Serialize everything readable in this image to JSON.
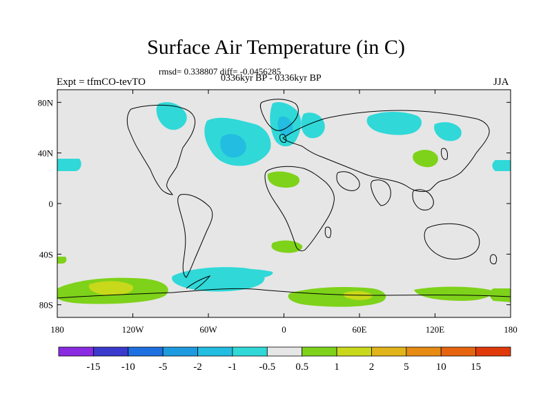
{
  "title": "Surface Air Temperature (in C)",
  "stats": "rmsd= 0.338807 diff= -0.0456285",
  "experiment": "Expt = tfmCO-tevTO",
  "period": "0336kyr BP - 0336kyr BP",
  "season": "JJA",
  "map": {
    "lon_range": [
      -180,
      180
    ],
    "lat_range": [
      -90,
      90
    ],
    "background_color": "#e6e6e6",
    "lat_ticks": [
      {
        "value": 80,
        "label": "80N"
      },
      {
        "value": 40,
        "label": "40N"
      },
      {
        "value": 0,
        "label": "0"
      },
      {
        "value": -40,
        "label": "40S"
      },
      {
        "value": -80,
        "label": "80S"
      }
    ],
    "lon_ticks": [
      {
        "value": -180,
        "label": "180"
      },
      {
        "value": -120,
        "label": "120W"
      },
      {
        "value": -60,
        "label": "60W"
      },
      {
        "value": 0,
        "label": "0"
      },
      {
        "value": 60,
        "label": "60E"
      },
      {
        "value": 120,
        "label": "120E"
      },
      {
        "value": 180,
        "label": "180"
      }
    ]
  },
  "legend": {
    "colors": [
      "#8a2be2",
      "#3a3acd",
      "#1e6fe0",
      "#1e9be0",
      "#22bde0",
      "#30d8d8",
      "#e6e6e6",
      "#7ed21a",
      "#c8d81a",
      "#e0b41a",
      "#e68c14",
      "#e6640f",
      "#e03a0a"
    ],
    "labels": [
      "-15",
      "-10",
      "-5",
      "-2",
      "-1",
      "-0.5",
      "0.5",
      "1",
      "2",
      "5",
      "10",
      "15"
    ]
  }
}
